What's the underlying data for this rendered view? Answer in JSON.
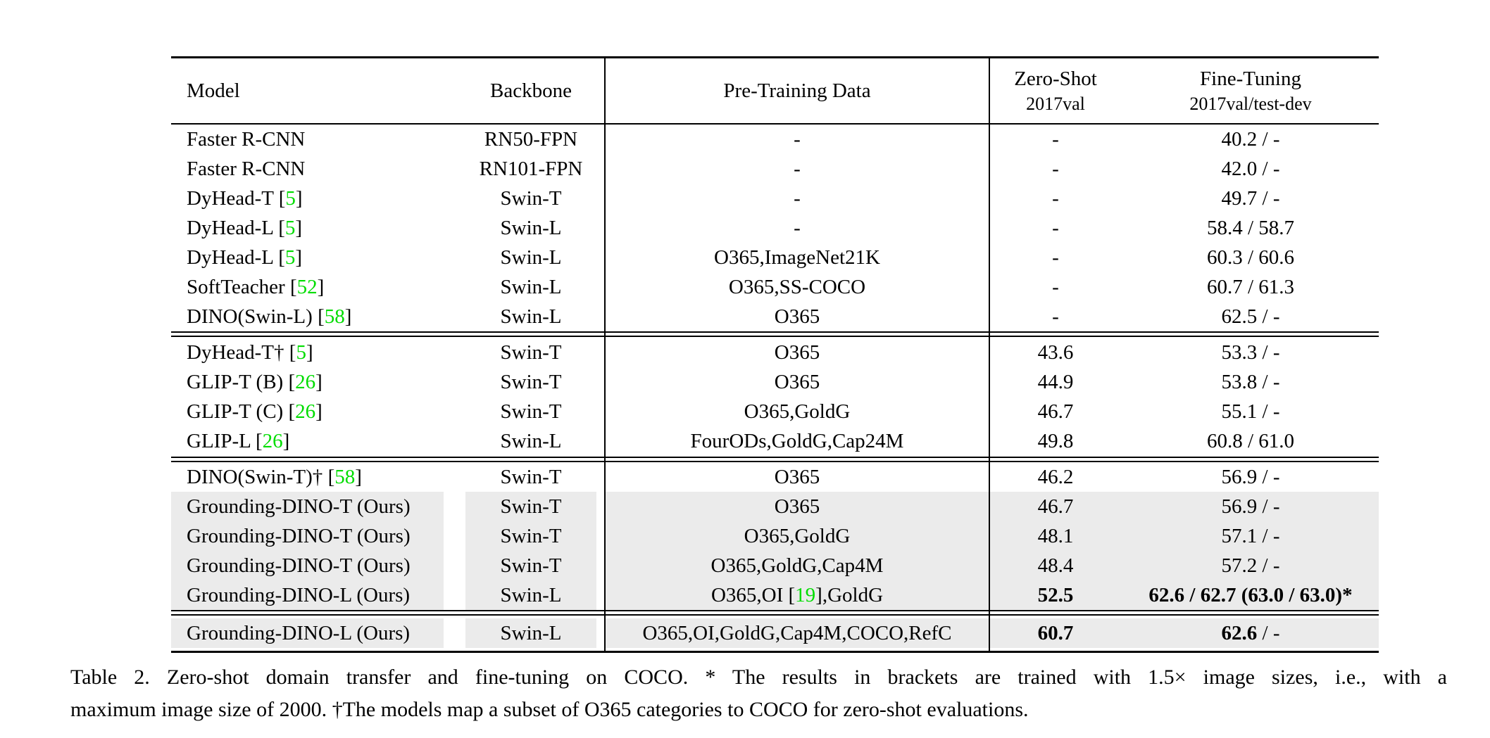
{
  "colors": {
    "citation_green": "#00dd00",
    "row_highlight": "#ebebeb"
  },
  "table": {
    "header": {
      "model": "Model",
      "backbone": "Backbone",
      "pretrain": "Pre-Training Data",
      "zeroshot1": "Zero-Shot",
      "zeroshot2": "2017val",
      "finetune1": "Fine-Tuning",
      "finetune2": "2017val/test-dev"
    },
    "groups": [
      {
        "rows": [
          {
            "hl": false,
            "model": [
              {
                "t": "Faster R-CNN"
              }
            ],
            "backbone": [
              {
                "t": "RN50-FPN"
              }
            ],
            "pretrain": [
              {
                "t": "-"
              }
            ],
            "zeroshot": [
              {
                "t": "-"
              }
            ],
            "finetune": [
              {
                "t": "40.2 / -"
              }
            ]
          },
          {
            "hl": false,
            "model": [
              {
                "t": "Faster R-CNN"
              }
            ],
            "backbone": [
              {
                "t": "RN101-FPN"
              }
            ],
            "pretrain": [
              {
                "t": "-"
              }
            ],
            "zeroshot": [
              {
                "t": "-"
              }
            ],
            "finetune": [
              {
                "t": "42.0 / -"
              }
            ]
          },
          {
            "hl": false,
            "model": [
              {
                "t": "DyHead-T "
              },
              {
                "c": "5"
              }
            ],
            "backbone": [
              {
                "t": "Swin-T"
              }
            ],
            "pretrain": [
              {
                "t": "-"
              }
            ],
            "zeroshot": [
              {
                "t": "-"
              }
            ],
            "finetune": [
              {
                "t": "49.7 / -"
              }
            ]
          },
          {
            "hl": false,
            "model": [
              {
                "t": "DyHead-L "
              },
              {
                "c": "5"
              }
            ],
            "backbone": [
              {
                "t": "Swin-L"
              }
            ],
            "pretrain": [
              {
                "t": "-"
              }
            ],
            "zeroshot": [
              {
                "t": "-"
              }
            ],
            "finetune": [
              {
                "t": "58.4 / 58.7"
              }
            ]
          },
          {
            "hl": false,
            "model": [
              {
                "t": "DyHead-L "
              },
              {
                "c": "5"
              }
            ],
            "backbone": [
              {
                "t": "Swin-L"
              }
            ],
            "pretrain": [
              {
                "t": "O365,ImageNet21K"
              }
            ],
            "zeroshot": [
              {
                "t": "-"
              }
            ],
            "finetune": [
              {
                "t": "60.3 / 60.6"
              }
            ]
          },
          {
            "hl": false,
            "model": [
              {
                "t": "SoftTeacher "
              },
              {
                "c": "52"
              }
            ],
            "backbone": [
              {
                "t": "Swin-L"
              }
            ],
            "pretrain": [
              {
                "t": "O365,SS-COCO"
              }
            ],
            "zeroshot": [
              {
                "t": "-"
              }
            ],
            "finetune": [
              {
                "t": "60.7 / 61.3"
              }
            ]
          },
          {
            "hl": false,
            "model": [
              {
                "t": "DINO(Swin-L) "
              },
              {
                "c": "58"
              }
            ],
            "backbone": [
              {
                "t": "Swin-L"
              }
            ],
            "pretrain": [
              {
                "t": "O365"
              }
            ],
            "zeroshot": [
              {
                "t": "-"
              }
            ],
            "finetune": [
              {
                "t": "62.5 / -"
              }
            ]
          }
        ]
      },
      {
        "rows": [
          {
            "hl": false,
            "model": [
              {
                "t": "DyHead-T† "
              },
              {
                "c": "5"
              }
            ],
            "backbone": [
              {
                "t": "Swin-T"
              }
            ],
            "pretrain": [
              {
                "t": "O365"
              }
            ],
            "zeroshot": [
              {
                "t": "43.6"
              }
            ],
            "finetune": [
              {
                "t": "53.3 / -"
              }
            ]
          },
          {
            "hl": false,
            "model": [
              {
                "t": "GLIP-T (B) "
              },
              {
                "c": "26"
              }
            ],
            "backbone": [
              {
                "t": "Swin-T"
              }
            ],
            "pretrain": [
              {
                "t": "O365"
              }
            ],
            "zeroshot": [
              {
                "t": "44.9"
              }
            ],
            "finetune": [
              {
                "t": "53.8 / -"
              }
            ]
          },
          {
            "hl": false,
            "model": [
              {
                "t": "GLIP-T (C) "
              },
              {
                "c": "26"
              }
            ],
            "backbone": [
              {
                "t": "Swin-T"
              }
            ],
            "pretrain": [
              {
                "t": "O365,GoldG"
              }
            ],
            "zeroshot": [
              {
                "t": "46.7"
              }
            ],
            "finetune": [
              {
                "t": "55.1 / -"
              }
            ]
          },
          {
            "hl": false,
            "model": [
              {
                "t": "GLIP-L "
              },
              {
                "c": "26"
              }
            ],
            "backbone": [
              {
                "t": "Swin-L"
              }
            ],
            "pretrain": [
              {
                "t": "FourODs,GoldG,Cap24M"
              }
            ],
            "zeroshot": [
              {
                "t": "49.8"
              }
            ],
            "finetune": [
              {
                "t": "60.8 / 61.0"
              }
            ]
          }
        ]
      },
      {
        "rows": [
          {
            "hl": false,
            "model": [
              {
                "t": "DINO(Swin-T)† "
              },
              {
                "c": "58"
              }
            ],
            "backbone": [
              {
                "t": "Swin-T"
              }
            ],
            "pretrain": [
              {
                "t": "O365"
              }
            ],
            "zeroshot": [
              {
                "t": "46.2"
              }
            ],
            "finetune": [
              {
                "t": "56.9 / -"
              }
            ]
          },
          {
            "hl": true,
            "model": [
              {
                "t": "Grounding-DINO-T (Ours)"
              }
            ],
            "backbone": [
              {
                "t": "Swin-T"
              }
            ],
            "pretrain": [
              {
                "t": "O365"
              }
            ],
            "zeroshot": [
              {
                "t": "46.7"
              }
            ],
            "finetune": [
              {
                "t": "56.9 / -"
              }
            ]
          },
          {
            "hl": true,
            "model": [
              {
                "t": "Grounding-DINO-T (Ours)"
              }
            ],
            "backbone": [
              {
                "t": "Swin-T"
              }
            ],
            "pretrain": [
              {
                "t": "O365,GoldG"
              }
            ],
            "zeroshot": [
              {
                "t": "48.1"
              }
            ],
            "finetune": [
              {
                "t": "57.1 / -"
              }
            ]
          },
          {
            "hl": true,
            "model": [
              {
                "t": "Grounding-DINO-T (Ours)"
              }
            ],
            "backbone": [
              {
                "t": "Swin-T"
              }
            ],
            "pretrain": [
              {
                "t": "O365,GoldG,Cap4M"
              }
            ],
            "zeroshot": [
              {
                "t": "48.4"
              }
            ],
            "finetune": [
              {
                "t": "57.2 / -"
              }
            ]
          },
          {
            "hl": true,
            "model": [
              {
                "t": "Grounding-DINO-L (Ours)"
              }
            ],
            "backbone": [
              {
                "t": "Swin-L"
              }
            ],
            "pretrain": [
              {
                "t": "O365,OI "
              },
              {
                "c": "19"
              },
              {
                "t": ",GoldG"
              }
            ],
            "zeroshot": [
              {
                "b": "52.5"
              }
            ],
            "finetune": [
              {
                "b": "62.6 / 62.7 (63.0 / 63.0)*"
              }
            ]
          }
        ]
      },
      {
        "rows": [
          {
            "hl": true,
            "model": [
              {
                "t": "Grounding-DINO-L (Ours)"
              }
            ],
            "backbone": [
              {
                "t": "Swin-L"
              }
            ],
            "pretrain": [
              {
                "t": "O365,OI,GoldG,Cap4M,COCO,RefC"
              }
            ],
            "zeroshot": [
              {
                "b": "60.7"
              }
            ],
            "finetune": [
              {
                "b": "62.6"
              },
              {
                "t": " / -"
              }
            ]
          }
        ]
      }
    ]
  },
  "caption": {
    "line1": "Table 2. Zero-shot domain transfer and fine-tuning on COCO. * The results in brackets are trained with 1.5× image sizes, i.e., with a",
    "line2": "maximum image size of 2000. †The models map a subset of O365 categories to COCO for zero-shot evaluations."
  }
}
